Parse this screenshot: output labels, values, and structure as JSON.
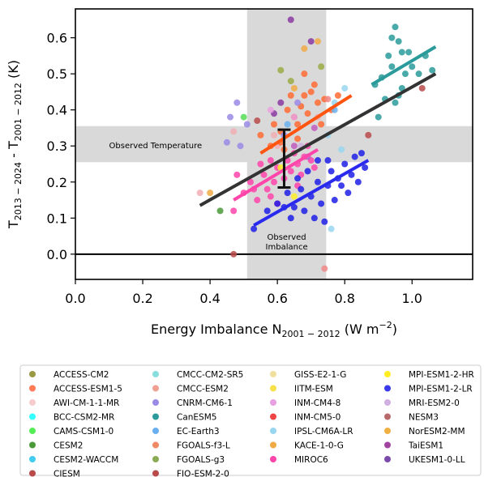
{
  "chart_data": {
    "type": "scatter",
    "xlabel": "Energy Imbalance N",
    "xlabel_sub": "2001 − 2012",
    "xlabel_unit": " (W m",
    "xlabel_unit_sup": "−2",
    "xlabel_unit_end": ")",
    "ylabel_parts": [
      "T",
      "2013 − 2024",
      " - T",
      "2001 − 2012",
      " (K)"
    ],
    "xlim": [
      0.0,
      1.18
    ],
    "ylim": [
      -0.07,
      0.68
    ],
    "xticks": [
      "0.0",
      "0.2",
      "0.4",
      "0.6",
      "0.8",
      "1.0"
    ],
    "xtick_values": [
      0.0,
      0.2,
      0.4,
      0.6,
      0.8,
      1.0
    ],
    "yticks": [
      "0.0",
      "0.1",
      "0.2",
      "0.3",
      "0.4",
      "0.5",
      "0.6"
    ],
    "ytick_values": [
      0.0,
      0.1,
      0.2,
      0.3,
      0.4,
      0.5,
      0.6
    ],
    "observed_temperature": {
      "label": "Observed Temperature",
      "range": [
        0.255,
        0.355
      ]
    },
    "observed_imbalance": {
      "label_line1": "Observed",
      "label_line2": "Imbalance",
      "range": [
        0.51,
        0.745
      ]
    },
    "error_bar": {
      "x": 0.62,
      "y_low": 0.185,
      "y_high": 0.345
    },
    "fit_lines": [
      {
        "color": "#333333",
        "x": [
          0.37,
          1.07
        ],
        "y": [
          0.135,
          0.5
        ]
      },
      {
        "color": "#FF5511",
        "x": [
          0.55,
          0.82
        ],
        "y": [
          0.28,
          0.44
        ]
      },
      {
        "color": "#FF44AA",
        "x": [
          0.47,
          0.72
        ],
        "y": [
          0.15,
          0.29
        ]
      },
      {
        "color": "#2A2AEE",
        "x": [
          0.53,
          0.87
        ],
        "y": [
          0.08,
          0.26
        ]
      },
      {
        "color": "#2A9A9A",
        "x": [
          0.88,
          1.07
        ],
        "y": [
          0.47,
          0.575
        ]
      }
    ],
    "series": [
      {
        "color": "#F0ADB4",
        "points": [
          [
            0.37,
            0.17
          ],
          [
            0.6,
            0.3
          ],
          [
            0.72,
            0.38
          ],
          [
            0.59,
            0.33
          ],
          [
            0.47,
            0.34
          ]
        ]
      },
      {
        "color": "#FF6A33",
        "points": [
          [
            0.55,
            0.33
          ],
          [
            0.59,
            0.36
          ],
          [
            0.61,
            0.34
          ],
          [
            0.63,
            0.4
          ],
          [
            0.65,
            0.38
          ],
          [
            0.67,
            0.41
          ],
          [
            0.68,
            0.44
          ],
          [
            0.69,
            0.39
          ],
          [
            0.7,
            0.45
          ],
          [
            0.72,
            0.42
          ],
          [
            0.74,
            0.43
          ],
          [
            0.66,
            0.32
          ],
          [
            0.62,
            0.29
          ],
          [
            0.71,
            0.47
          ],
          [
            0.76,
            0.4
          ],
          [
            0.58,
            0.3
          ],
          [
            0.64,
            0.44
          ],
          [
            0.68,
            0.5
          ],
          [
            0.73,
            0.36
          ],
          [
            0.66,
            0.36
          ],
          [
            0.61,
            0.31
          ],
          [
            0.78,
            0.44
          ]
        ]
      },
      {
        "color": "#FF44AA",
        "points": [
          [
            0.47,
            0.12
          ],
          [
            0.5,
            0.17
          ],
          [
            0.52,
            0.2
          ],
          [
            0.54,
            0.15
          ],
          [
            0.56,
            0.22
          ],
          [
            0.57,
            0.18
          ],
          [
            0.58,
            0.16
          ],
          [
            0.59,
            0.2
          ],
          [
            0.6,
            0.24
          ],
          [
            0.62,
            0.21
          ],
          [
            0.63,
            0.26
          ],
          [
            0.64,
            0.23
          ],
          [
            0.65,
            0.28
          ],
          [
            0.66,
            0.25
          ],
          [
            0.67,
            0.22
          ],
          [
            0.68,
            0.27
          ],
          [
            0.69,
            0.3
          ],
          [
            0.7,
            0.26
          ],
          [
            0.55,
            0.25
          ],
          [
            0.53,
            0.18
          ],
          [
            0.6,
            0.14
          ],
          [
            0.66,
            0.19
          ],
          [
            0.71,
            0.24
          ],
          [
            0.58,
            0.26
          ],
          [
            0.48,
            0.22
          ]
        ]
      },
      {
        "color": "#1E1EE6",
        "points": [
          [
            0.53,
            0.07
          ],
          [
            0.57,
            0.12
          ],
          [
            0.6,
            0.14
          ],
          [
            0.63,
            0.17
          ],
          [
            0.65,
            0.13
          ],
          [
            0.67,
            0.18
          ],
          [
            0.68,
            0.12
          ],
          [
            0.7,
            0.16
          ],
          [
            0.72,
            0.2
          ],
          [
            0.73,
            0.14
          ],
          [
            0.75,
            0.19
          ],
          [
            0.76,
            0.23
          ],
          [
            0.78,
            0.21
          ],
          [
            0.8,
            0.25
          ],
          [
            0.82,
            0.22
          ],
          [
            0.83,
            0.27
          ],
          [
            0.84,
            0.2
          ],
          [
            0.86,
            0.24
          ],
          [
            0.71,
            0.1
          ],
          [
            0.74,
            0.09
          ],
          [
            0.77,
            0.15
          ],
          [
            0.79,
            0.19
          ],
          [
            0.66,
            0.21
          ],
          [
            0.69,
            0.23
          ],
          [
            0.81,
            0.17
          ],
          [
            0.64,
            0.1
          ],
          [
            0.75,
            0.26
          ],
          [
            0.62,
            0.13
          ],
          [
            0.85,
            0.28
          ],
          [
            0.72,
            0.26
          ]
        ]
      },
      {
        "color": "#2A9A9A",
        "points": [
          [
            0.89,
            0.47
          ],
          [
            0.91,
            0.49
          ],
          [
            0.93,
            0.55
          ],
          [
            0.94,
            0.6
          ],
          [
            0.95,
            0.63
          ],
          [
            0.96,
            0.59
          ],
          [
            0.97,
            0.56
          ],
          [
            0.98,
            0.5
          ],
          [
            1.0,
            0.52
          ],
          [
            1.02,
            0.5
          ],
          [
            1.04,
            0.55
          ],
          [
            1.06,
            0.51
          ],
          [
            0.92,
            0.43
          ],
          [
            0.95,
            0.42
          ],
          [
            0.9,
            0.38
          ],
          [
            0.97,
            0.46
          ],
          [
            0.99,
            0.56
          ],
          [
            0.94,
            0.52
          ],
          [
            0.96,
            0.44
          ]
        ]
      },
      {
        "color": "#9A8AE6",
        "points": [
          [
            0.46,
            0.38
          ],
          [
            0.48,
            0.42
          ],
          [
            0.49,
            0.3
          ],
          [
            0.51,
            0.36
          ],
          [
            0.45,
            0.31
          ],
          [
            0.66,
            0.42
          ],
          [
            0.62,
            0.33
          ]
        ]
      },
      {
        "color": "#9AAA44",
        "points": [
          [
            0.73,
            0.52
          ],
          [
            0.64,
            0.48
          ],
          [
            0.61,
            0.51
          ]
        ]
      },
      {
        "color": "#4A9A3A",
        "points": [
          [
            0.43,
            0.12
          ]
        ]
      },
      {
        "color": "#B84A4A",
        "points": [
          [
            0.47,
            0.0
          ],
          [
            0.87,
            0.33
          ],
          [
            1.03,
            0.46
          ],
          [
            0.54,
            0.37
          ]
        ]
      },
      {
        "color": "#8A3AA2",
        "points": [
          [
            0.64,
            0.65
          ],
          [
            0.7,
            0.59
          ],
          [
            0.59,
            0.39
          ],
          [
            0.61,
            0.42
          ]
        ]
      },
      {
        "color": "#C05AC0",
        "points": [
          [
            0.69,
            0.27
          ],
          [
            0.65,
            0.3
          ],
          [
            0.71,
            0.35
          ]
        ]
      },
      {
        "color": "#F0AA44",
        "points": [
          [
            0.68,
            0.57
          ],
          [
            0.72,
            0.59
          ],
          [
            0.65,
            0.46
          ],
          [
            0.4,
            0.17
          ]
        ]
      },
      {
        "color": "#FFEE22",
        "points": [
          [
            0.65,
            0.16
          ],
          [
            0.61,
            0.24
          ]
        ]
      },
      {
        "color": "#99D6F0",
        "points": [
          [
            0.76,
            0.07
          ],
          [
            0.8,
            0.46
          ],
          [
            0.79,
            0.29
          ],
          [
            0.77,
            0.42
          ],
          [
            0.75,
            0.33
          ]
        ]
      },
      {
        "color": "#6AB0F0",
        "points": [
          [
            0.77,
            0.4
          ],
          [
            0.63,
            0.36
          ]
        ]
      },
      {
        "color": "#F08888",
        "points": [
          [
            0.74,
            -0.04
          ],
          [
            0.75,
            0.43
          ]
        ]
      },
      {
        "color": "#E8A0E0",
        "points": [
          [
            0.65,
            0.38
          ],
          [
            0.58,
            0.4
          ]
        ]
      },
      {
        "color": "#D0B0E0",
        "points": [
          [
            0.67,
            0.3
          ]
        ]
      },
      {
        "color": "#55DD55",
        "points": [
          [
            0.5,
            0.38
          ]
        ]
      }
    ]
  },
  "legend": {
    "columns": [
      [
        {
          "label": "ACCESS-CM2",
          "color": "#9A9A44"
        },
        {
          "label": "ACCESS-ESM1-5",
          "color": "#FF7A55"
        },
        {
          "label": "AWI-CM-1-1-MR",
          "color": "#F8CCCC"
        },
        {
          "label": "BCC-CSM2-MR",
          "color": "#33FFFF"
        },
        {
          "label": "CAMS-CSM1-0",
          "color": "#55EE55"
        },
        {
          "label": "CESM2",
          "color": "#4A9A3A"
        },
        {
          "label": "CESM2-WACCM",
          "color": "#44CCF0"
        },
        {
          "label": "CIESM",
          "color": "#B84A4A"
        }
      ],
      [
        {
          "label": "CMCC-CM2-SR5",
          "color": "#88DDDD"
        },
        {
          "label": "CMCC-ESM2",
          "color": "#F0A090"
        },
        {
          "label": "CNRM-CM6-1",
          "color": "#9A8AE6"
        },
        {
          "label": "CanESM5",
          "color": "#2A9A9A"
        },
        {
          "label": "EC-Earth3",
          "color": "#6AB0F0"
        },
        {
          "label": "FGOALS-f3-L",
          "color": "#F08866"
        },
        {
          "label": "FGOALS-g3",
          "color": "#8AAA55"
        },
        {
          "label": "FIO-ESM-2-0",
          "color": "#B84A4A"
        }
      ],
      [
        {
          "label": "GISS-E2-1-G",
          "color": "#F0E0A0"
        },
        {
          "label": "IITM-ESM",
          "color": "#F8E04A"
        },
        {
          "label": "INM-CM4-8",
          "color": "#E8A0E0"
        },
        {
          "label": "INM-CM5-0",
          "color": "#EE4444"
        },
        {
          "label": "IPSL-CM6A-LR",
          "color": "#99D6F0"
        },
        {
          "label": "KACE-1-0-G",
          "color": "#F0AA44"
        },
        {
          "label": "MIROC6",
          "color": "#FF44AA"
        }
      ],
      [
        {
          "label": "MPI-ESM1-2-HR",
          "color": "#FFEE22"
        },
        {
          "label": "MPI-ESM1-2-LR",
          "color": "#3A3AEE"
        },
        {
          "label": "MRI-ESM2-0",
          "color": "#D0B0E0"
        },
        {
          "label": "NESM3",
          "color": "#B86A6A"
        },
        {
          "label": "NorESM2-MM",
          "color": "#F0B044"
        },
        {
          "label": "TaiESM1",
          "color": "#A044A0"
        },
        {
          "label": "UKESM1-0-LL",
          "color": "#7A4AAA"
        }
      ]
    ]
  }
}
